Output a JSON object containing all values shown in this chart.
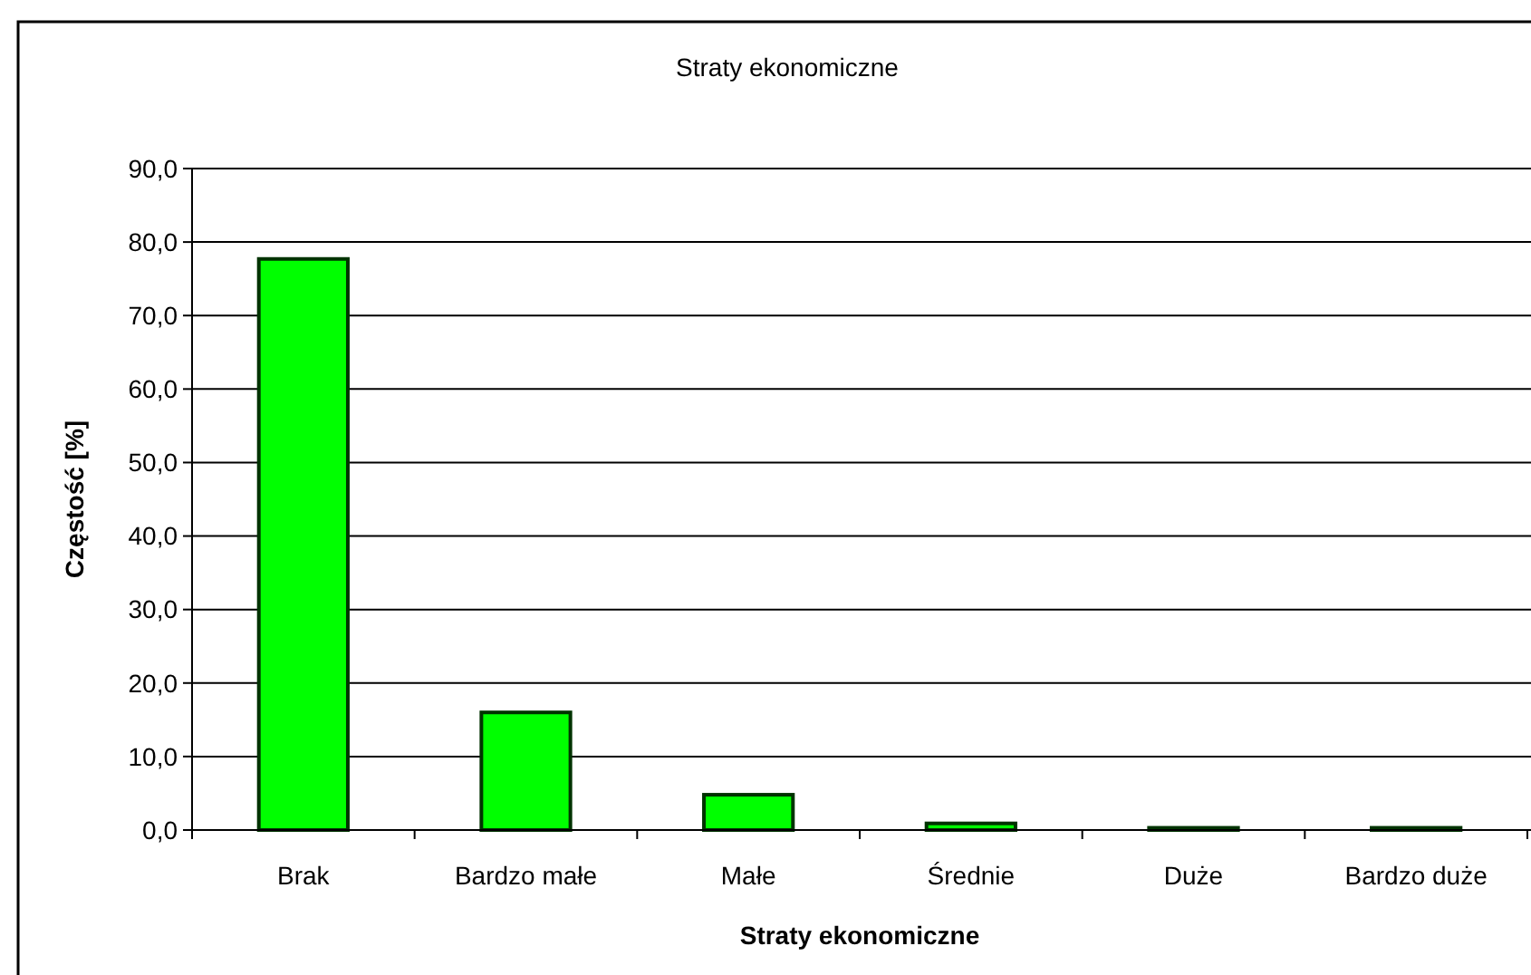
{
  "chart_data": {
    "type": "bar",
    "title": "Straty ekonomiczne",
    "xlabel": "Straty ekonomiczne",
    "ylabel": "Częstość [%]",
    "categories": [
      "Brak",
      "Bardzo małe",
      "Małe",
      "Średnie",
      "Duże",
      "Bardzo duże"
    ],
    "values": [
      77.7,
      16.0,
      4.8,
      0.9,
      0.3,
      0.3
    ],
    "color": "#00ff00",
    "ylim": [
      0,
      90
    ],
    "yticks": [
      {
        "value": 0,
        "label": "0,0"
      },
      {
        "value": 10,
        "label": "10,0"
      },
      {
        "value": 20,
        "label": "20,0"
      },
      {
        "value": 30,
        "label": "30,0"
      },
      {
        "value": 40,
        "label": "40,0"
      },
      {
        "value": 50,
        "label": "50,0"
      },
      {
        "value": 60,
        "label": "60,0"
      },
      {
        "value": 70,
        "label": "70,0"
      },
      {
        "value": 80,
        "label": "80,0"
      },
      {
        "value": 90,
        "label": "90,0"
      }
    ],
    "grid": "y"
  }
}
